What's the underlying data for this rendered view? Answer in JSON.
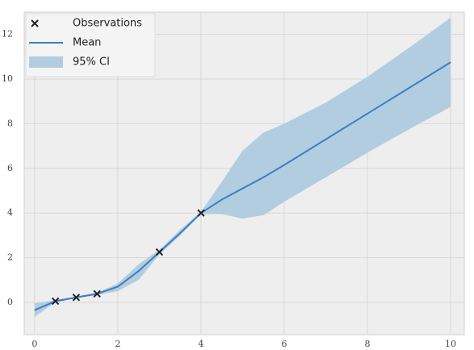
{
  "chart_data": {
    "type": "line",
    "x": [
      0,
      0.5,
      1,
      1.5,
      2,
      2.5,
      3,
      3.5,
      4,
      4.5,
      5,
      5.5,
      6,
      7,
      8,
      9,
      10
    ],
    "series": [
      {
        "name": "Mean",
        "color": "#3a7fc4",
        "values": [
          -0.35,
          0.05,
          0.22,
          0.38,
          0.7,
          1.4,
          2.25,
          3.1,
          4.0,
          4.6,
          5.1,
          5.6,
          6.15,
          7.3,
          8.45,
          9.6,
          10.75
        ]
      }
    ],
    "ci": {
      "name": "95% CI",
      "color": "#b3cde0",
      "lower": [
        -0.65,
        0.0,
        0.18,
        0.33,
        0.5,
        1.0,
        2.15,
        3.0,
        3.95,
        3.95,
        3.75,
        3.9,
        4.5,
        5.6,
        6.7,
        7.75,
        8.75
      ],
      "upper": [
        -0.05,
        0.1,
        0.26,
        0.43,
        0.85,
        1.7,
        2.35,
        3.25,
        4.05,
        5.4,
        6.8,
        7.6,
        8.0,
        8.95,
        10.1,
        11.4,
        12.75
      ]
    },
    "observations": {
      "name": "Observations",
      "color": "#222222",
      "x": [
        0.5,
        1,
        1.5,
        3,
        4
      ],
      "y": [
        0.05,
        0.22,
        0.38,
        2.25,
        4.0
      ]
    },
    "xlim": [
      -0.25,
      10.33
    ],
    "ylim": [
      -1.45,
      13
    ],
    "xticks": [
      0,
      2,
      4,
      6,
      8,
      10
    ],
    "yticks": [
      0,
      2,
      4,
      6,
      8,
      10,
      12
    ],
    "grid": true,
    "legend": "upper left"
  }
}
